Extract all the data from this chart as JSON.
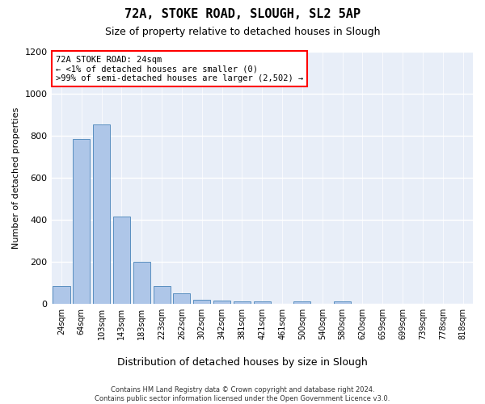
{
  "title1": "72A, STOKE ROAD, SLOUGH, SL2 5AP",
  "title2": "Size of property relative to detached houses in Slough",
  "xlabel": "Distribution of detached houses by size in Slough",
  "ylabel": "Number of detached properties",
  "bar_color": "#aec6e8",
  "bar_edge_color": "#5a8fc0",
  "background_color": "#e8eef8",
  "categories": [
    "24sqm",
    "64sqm",
    "103sqm",
    "143sqm",
    "183sqm",
    "223sqm",
    "262sqm",
    "302sqm",
    "342sqm",
    "381sqm",
    "421sqm",
    "461sqm",
    "500sqm",
    "540sqm",
    "580sqm",
    "620sqm",
    "659sqm",
    "699sqm",
    "739sqm",
    "778sqm",
    "818sqm"
  ],
  "values": [
    85,
    785,
    855,
    415,
    200,
    85,
    50,
    20,
    15,
    10,
    10,
    0,
    10,
    0,
    10,
    0,
    0,
    0,
    0,
    0,
    0
  ],
  "annotation_title": "72A STOKE ROAD: 24sqm",
  "annotation_line1": "← <1% of detached houses are smaller (0)",
  "annotation_line2": ">99% of semi-detached houses are larger (2,502) →",
  "annotation_rect_color": "#ff0000",
  "ylim": [
    0,
    1200
  ],
  "yticks": [
    0,
    200,
    400,
    600,
    800,
    1000,
    1200
  ],
  "footer_line1": "Contains HM Land Registry data © Crown copyright and database right 2024.",
  "footer_line2": "Contains public sector information licensed under the Open Government Licence v3.0."
}
